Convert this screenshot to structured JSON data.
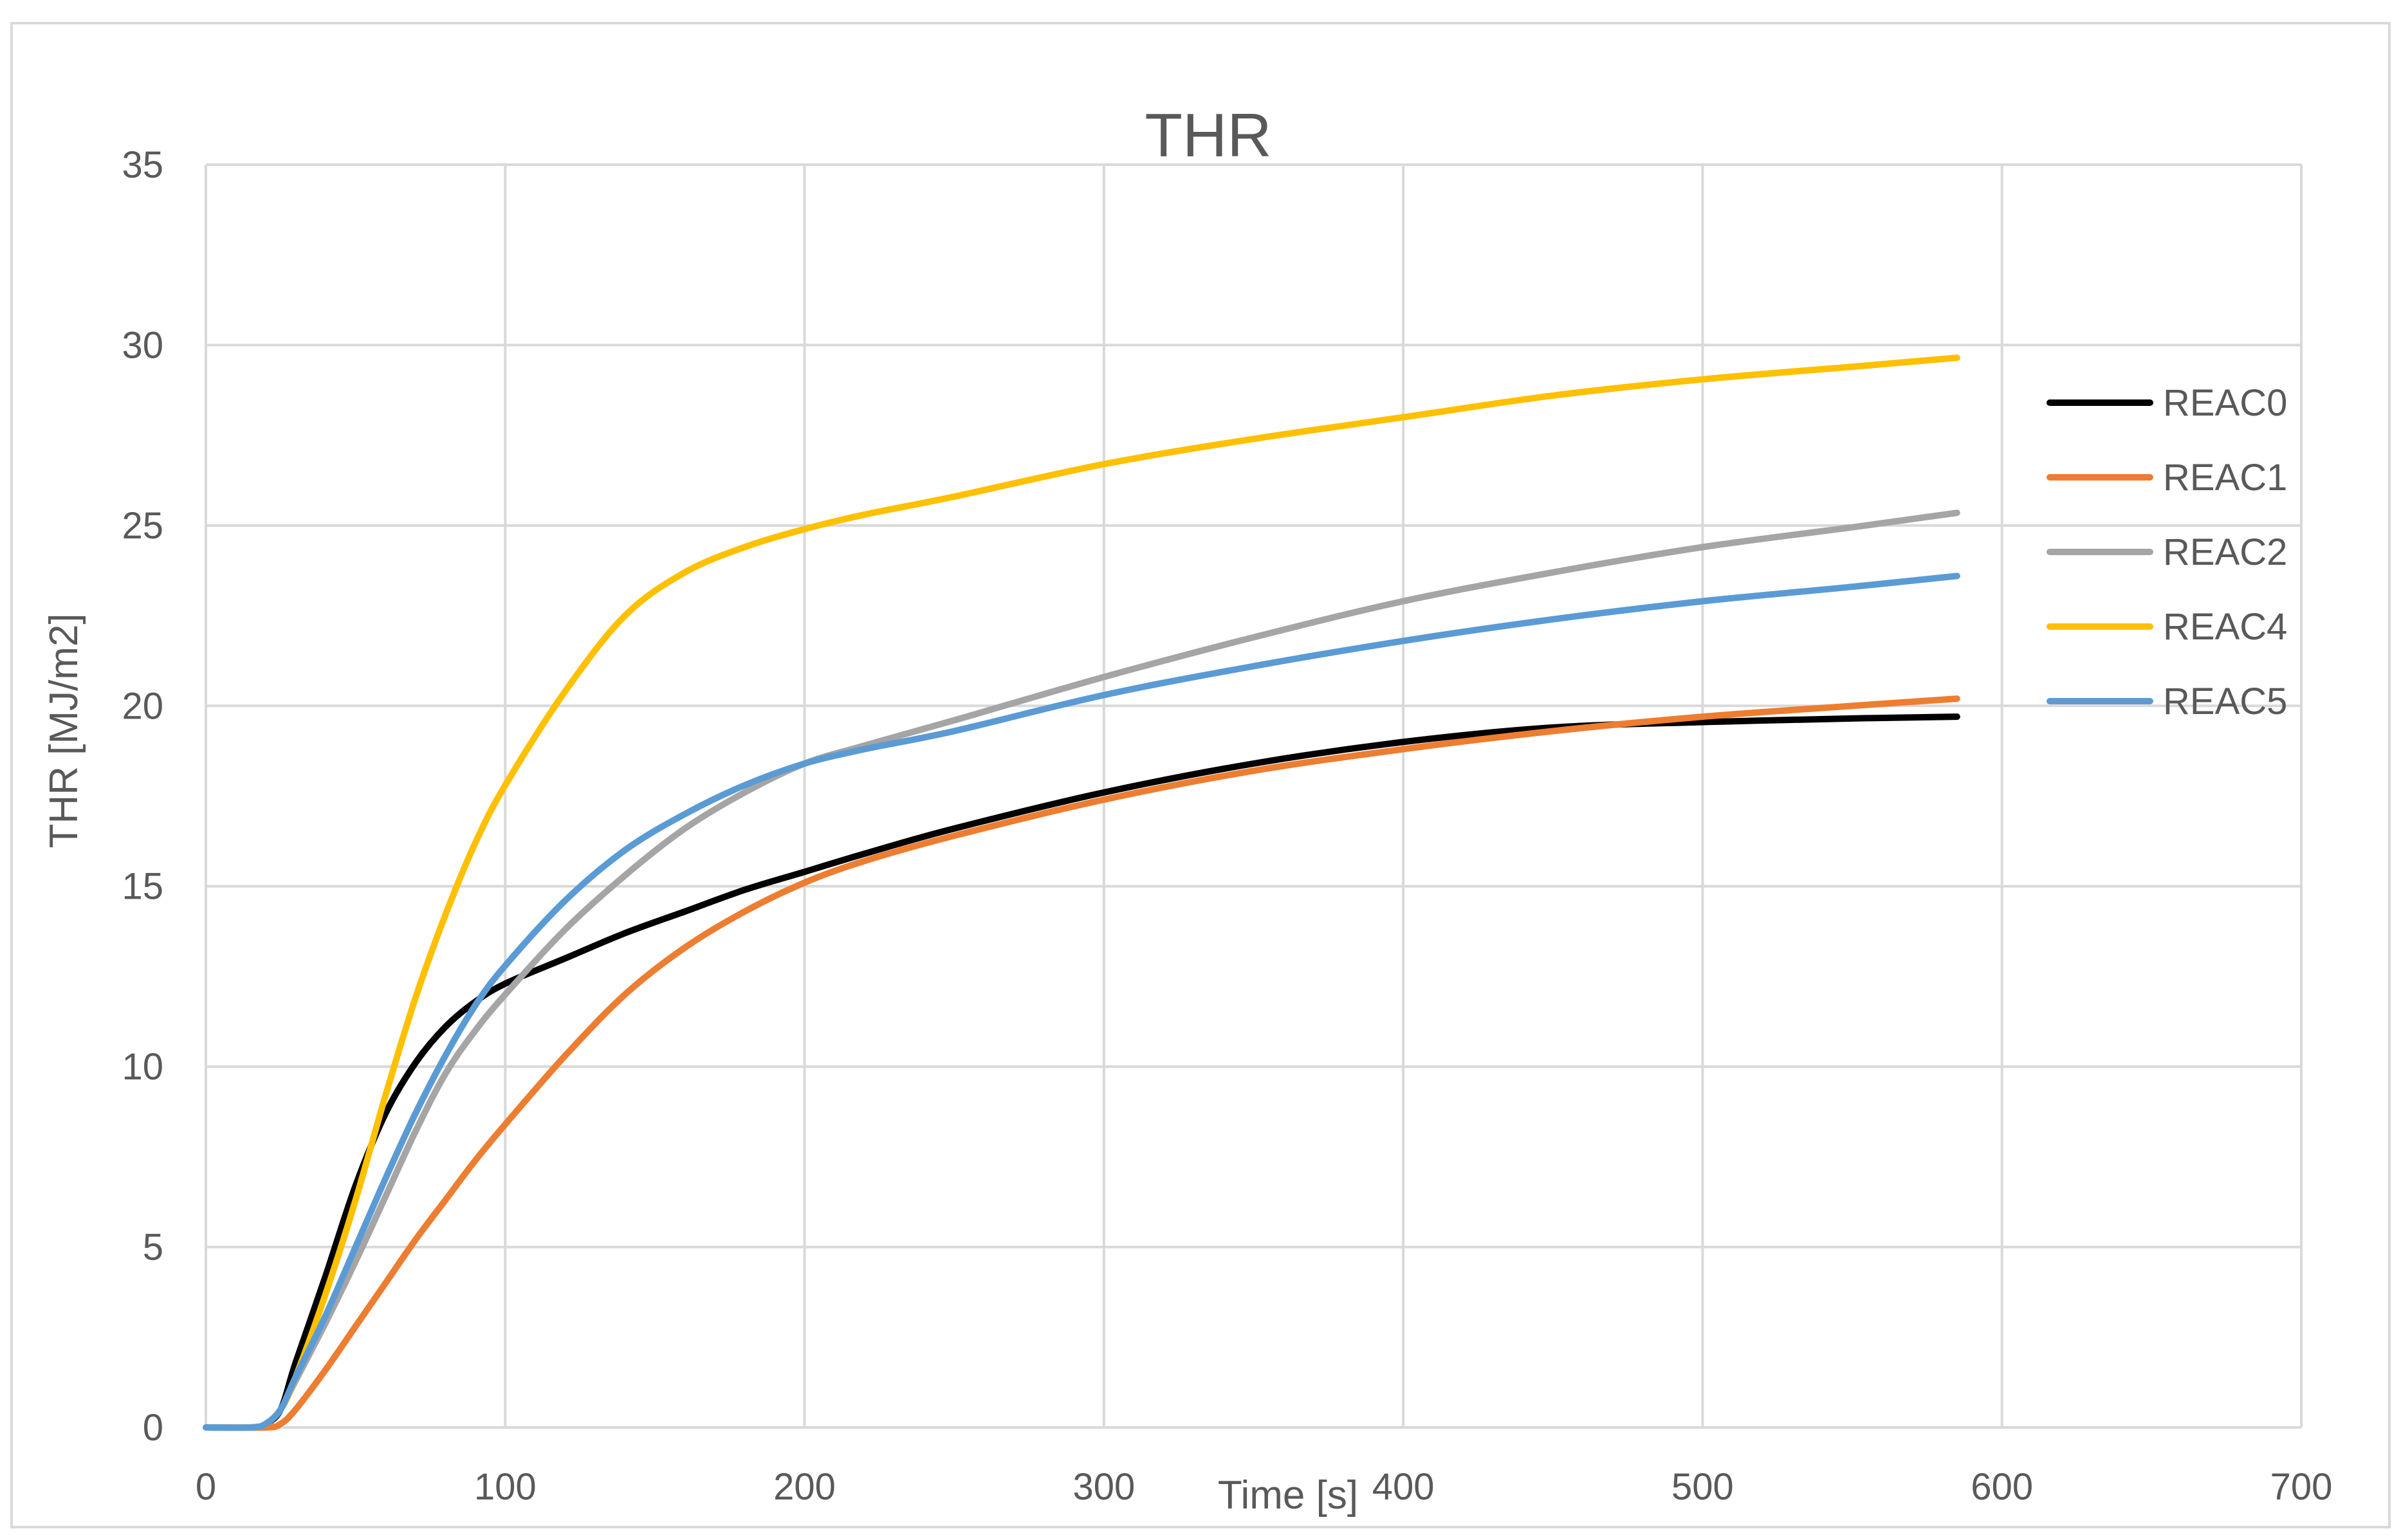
{
  "chart_data": {
    "type": "line",
    "title": "THR",
    "xlabel": "Time [s]",
    "ylabel": "THR [MJ/m2]",
    "xlim": [
      0,
      700
    ],
    "ylim": [
      0,
      35
    ],
    "x_ticks": [
      0,
      100,
      200,
      300,
      400,
      500,
      600,
      700
    ],
    "y_ticks": [
      0,
      5,
      10,
      15,
      20,
      25,
      30,
      35
    ],
    "grid": true,
    "legend_position": "right",
    "series": [
      {
        "name": "REAC0",
        "color": "#000000",
        "points": [
          [
            0,
            0
          ],
          [
            15,
            0
          ],
          [
            20,
            0.1
          ],
          [
            25,
            0.5
          ],
          [
            30,
            1.8
          ],
          [
            40,
            4.2
          ],
          [
            50,
            6.7
          ],
          [
            60,
            8.7
          ],
          [
            70,
            10.1
          ],
          [
            80,
            11.1
          ],
          [
            90,
            11.8
          ],
          [
            100,
            12.3
          ],
          [
            120,
            13.0
          ],
          [
            140,
            13.7
          ],
          [
            160,
            14.3
          ],
          [
            180,
            14.9
          ],
          [
            200,
            15.4
          ],
          [
            220,
            15.9
          ],
          [
            250,
            16.6
          ],
          [
            300,
            17.6
          ],
          [
            350,
            18.4
          ],
          [
            400,
            19.0
          ],
          [
            450,
            19.4
          ],
          [
            500,
            19.55
          ],
          [
            550,
            19.65
          ],
          [
            585,
            19.7
          ]
        ]
      },
      {
        "name": "REAC1",
        "color": "#ed7d31",
        "points": [
          [
            0,
            0
          ],
          [
            20,
            0
          ],
          [
            25,
            0.1
          ],
          [
            30,
            0.5
          ],
          [
            40,
            1.6
          ],
          [
            50,
            2.8
          ],
          [
            60,
            4.0
          ],
          [
            70,
            5.2
          ],
          [
            80,
            6.3
          ],
          [
            90,
            7.4
          ],
          [
            100,
            8.4
          ],
          [
            120,
            10.3
          ],
          [
            140,
            12.0
          ],
          [
            160,
            13.3
          ],
          [
            180,
            14.3
          ],
          [
            200,
            15.1
          ],
          [
            220,
            15.7
          ],
          [
            250,
            16.4
          ],
          [
            300,
            17.4
          ],
          [
            350,
            18.2
          ],
          [
            400,
            18.8
          ],
          [
            450,
            19.3
          ],
          [
            500,
            19.7
          ],
          [
            550,
            20.0
          ],
          [
            585,
            20.2
          ]
        ]
      },
      {
        "name": "REAC2",
        "color": "#a5a5a5",
        "points": [
          [
            0,
            0
          ],
          [
            15,
            0
          ],
          [
            20,
            0.1
          ],
          [
            25,
            0.5
          ],
          [
            30,
            1.3
          ],
          [
            40,
            2.9
          ],
          [
            50,
            4.6
          ],
          [
            60,
            6.4
          ],
          [
            70,
            8.2
          ],
          [
            80,
            9.8
          ],
          [
            90,
            11.0
          ],
          [
            100,
            12.0
          ],
          [
            120,
            13.8
          ],
          [
            140,
            15.3
          ],
          [
            160,
            16.6
          ],
          [
            180,
            17.6
          ],
          [
            200,
            18.4
          ],
          [
            220,
            18.9
          ],
          [
            250,
            19.6
          ],
          [
            300,
            20.8
          ],
          [
            350,
            21.9
          ],
          [
            400,
            22.9
          ],
          [
            450,
            23.7
          ],
          [
            500,
            24.4
          ],
          [
            550,
            24.95
          ],
          [
            585,
            25.35
          ]
        ]
      },
      {
        "name": "REAC4",
        "color": "#ffc000",
        "points": [
          [
            0,
            0
          ],
          [
            15,
            0
          ],
          [
            20,
            0.1
          ],
          [
            25,
            0.5
          ],
          [
            30,
            1.4
          ],
          [
            40,
            3.7
          ],
          [
            50,
            6.3
          ],
          [
            60,
            9.2
          ],
          [
            70,
            11.9
          ],
          [
            80,
            14.2
          ],
          [
            90,
            16.2
          ],
          [
            100,
            17.8
          ],
          [
            120,
            20.4
          ],
          [
            140,
            22.5
          ],
          [
            160,
            23.7
          ],
          [
            180,
            24.4
          ],
          [
            200,
            24.9
          ],
          [
            220,
            25.3
          ],
          [
            250,
            25.8
          ],
          [
            300,
            26.7
          ],
          [
            350,
            27.4
          ],
          [
            400,
            28.0
          ],
          [
            450,
            28.6
          ],
          [
            500,
            29.05
          ],
          [
            550,
            29.4
          ],
          [
            585,
            29.65
          ]
        ]
      },
      {
        "name": "REAC5",
        "color": "#5b9bd5",
        "points": [
          [
            0,
            0
          ],
          [
            15,
            0
          ],
          [
            20,
            0.1
          ],
          [
            25,
            0.5
          ],
          [
            30,
            1.4
          ],
          [
            40,
            3.1
          ],
          [
            50,
            5.0
          ],
          [
            60,
            6.9
          ],
          [
            70,
            8.7
          ],
          [
            80,
            10.3
          ],
          [
            90,
            11.7
          ],
          [
            100,
            12.8
          ],
          [
            120,
            14.6
          ],
          [
            140,
            16.0
          ],
          [
            160,
            17.0
          ],
          [
            180,
            17.8
          ],
          [
            200,
            18.4
          ],
          [
            220,
            18.8
          ],
          [
            250,
            19.3
          ],
          [
            300,
            20.3
          ],
          [
            350,
            21.1
          ],
          [
            400,
            21.8
          ],
          [
            450,
            22.4
          ],
          [
            500,
            22.9
          ],
          [
            550,
            23.3
          ],
          [
            585,
            23.6
          ]
        ]
      }
    ]
  }
}
